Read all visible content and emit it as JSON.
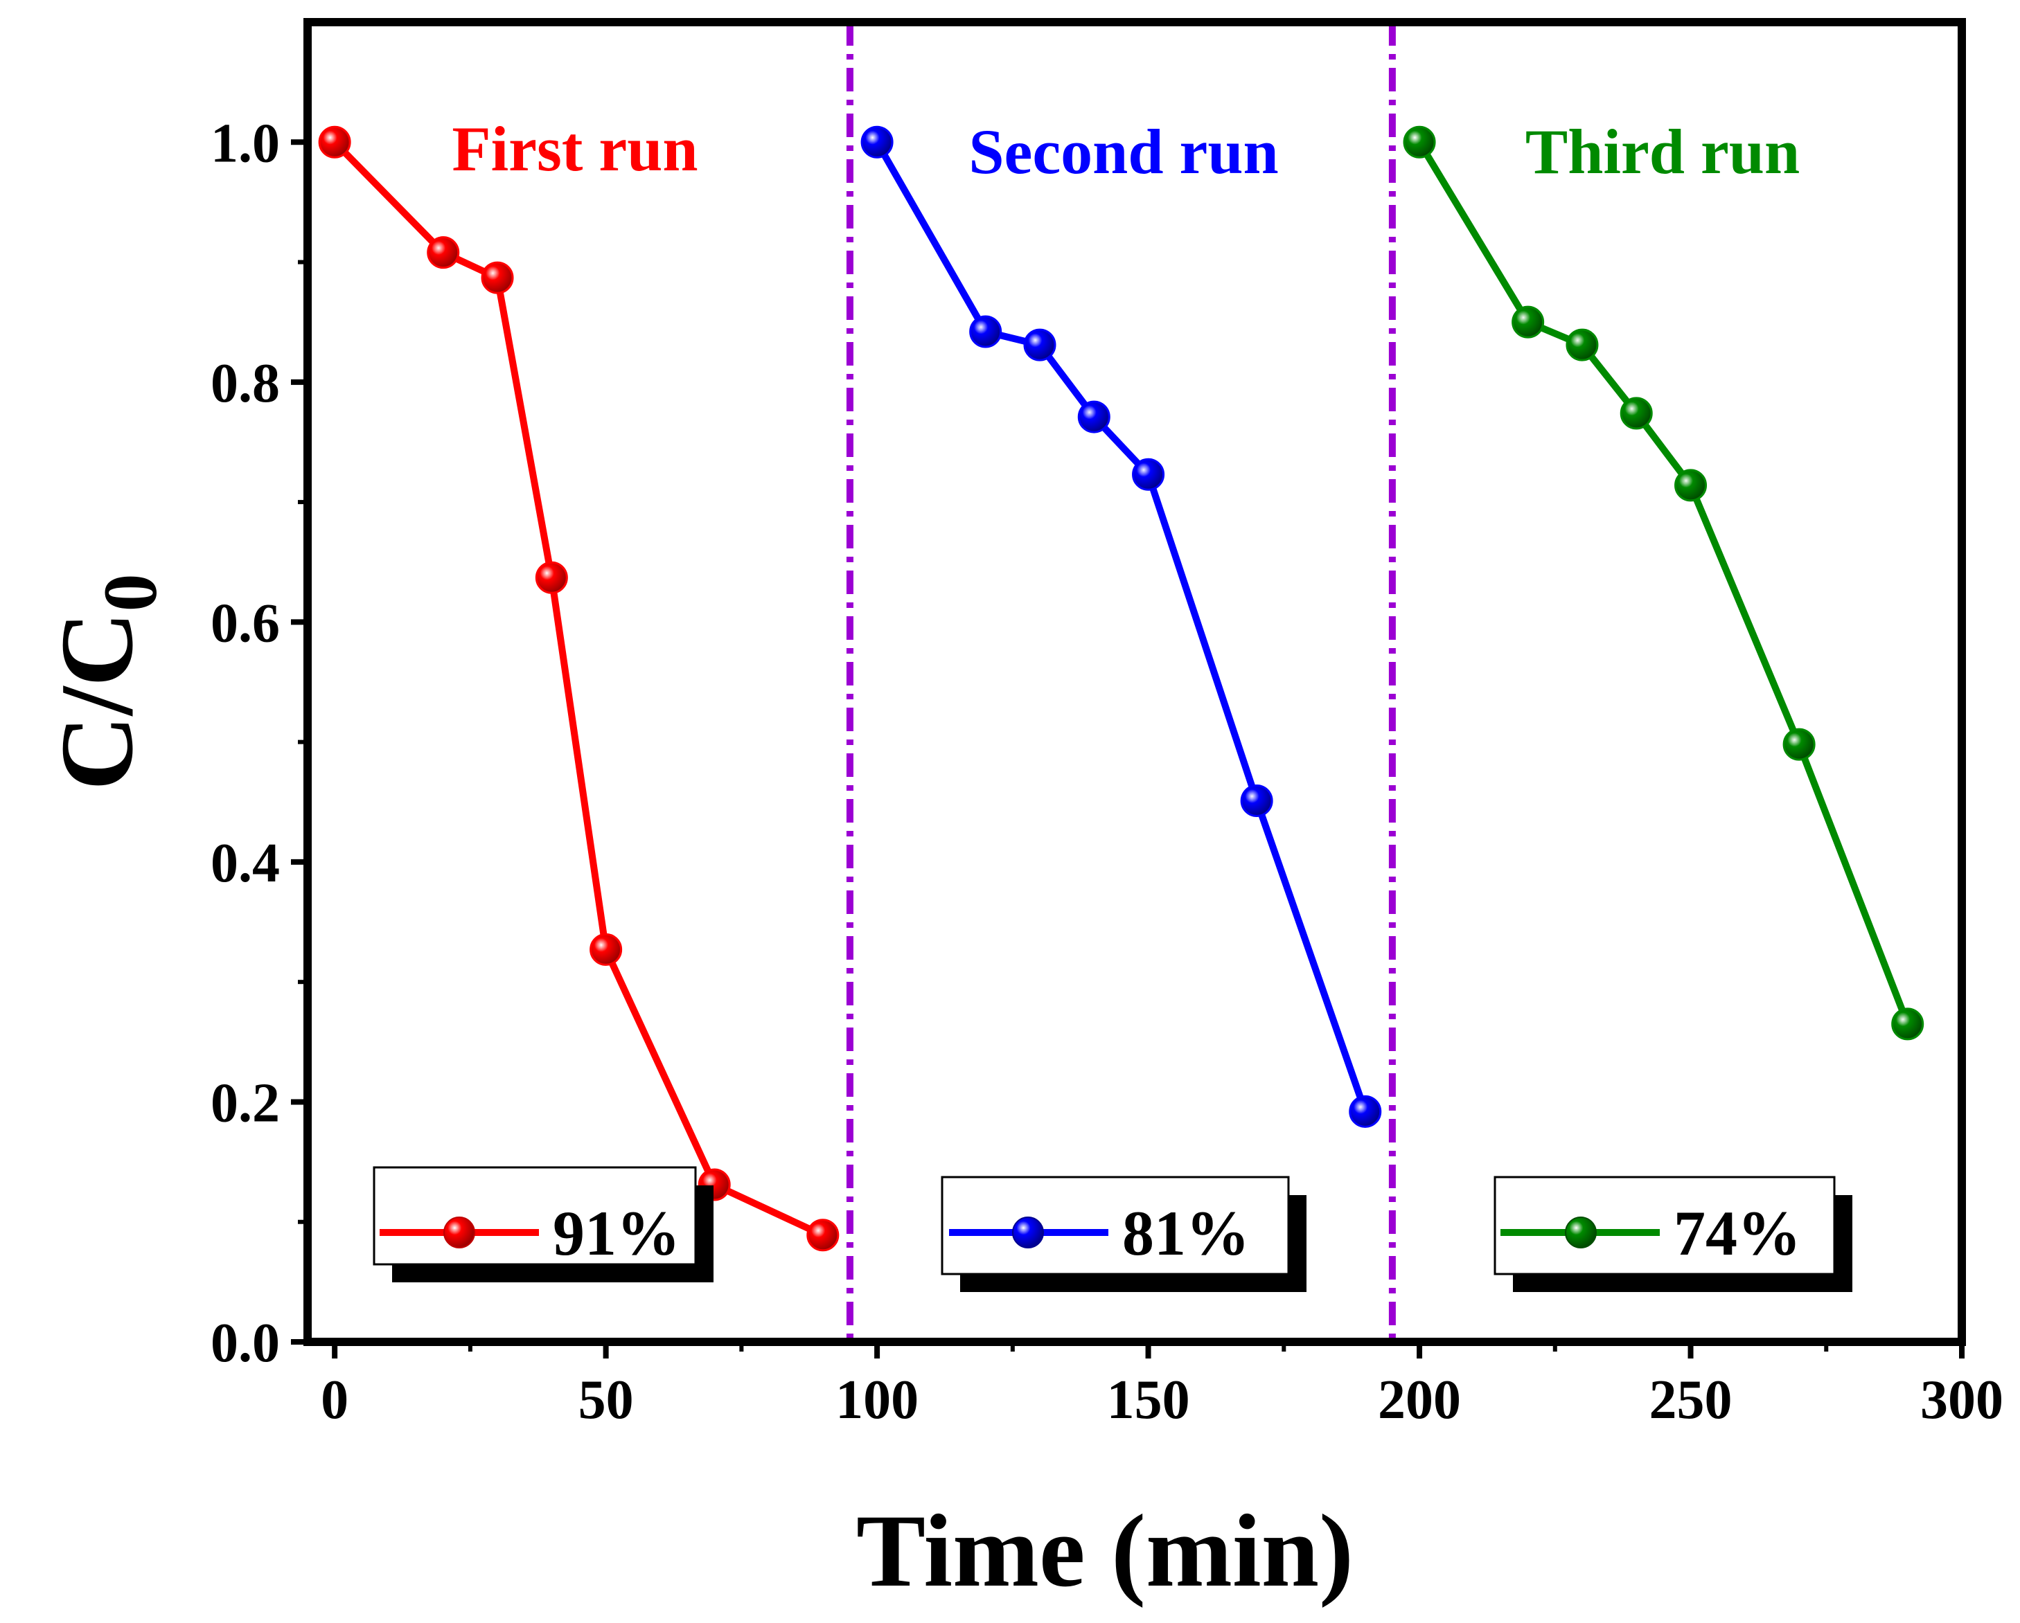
{
  "chart_data": {
    "type": "line",
    "xlabel": "Time (min)",
    "ylabel_main": "C/C",
    "ylabel_sub": "0",
    "xlim": [
      -5,
      300
    ],
    "ylim": [
      0,
      1.1
    ],
    "xticks": [
      0,
      50,
      100,
      150,
      200,
      250,
      300
    ],
    "yticks": [
      0.0,
      0.2,
      0.4,
      0.6,
      0.8,
      1.0
    ],
    "xtick_labels": [
      "0",
      "50",
      "100",
      "150",
      "200",
      "250",
      "300"
    ],
    "ytick_labels": [
      "0.0",
      "0.2",
      "0.4",
      "0.6",
      "0.8",
      "1.0"
    ],
    "dividers": [
      {
        "x": 95,
        "color": "#9b00d3"
      },
      {
        "x": 195,
        "color": "#9b00d3"
      }
    ],
    "series": [
      {
        "name": "First run",
        "legend": "91%",
        "color": "#ff0000",
        "x": [
          0,
          20,
          30,
          40,
          50,
          70,
          90
        ],
        "y": [
          1.0,
          0.908,
          0.887,
          0.637,
          0.327,
          0.131,
          0.089
        ]
      },
      {
        "name": "Second run",
        "legend": "81%",
        "color": "#0000ff",
        "x": [
          100,
          120,
          130,
          140,
          150,
          170,
          190
        ],
        "y": [
          1.0,
          0.842,
          0.831,
          0.771,
          0.723,
          0.451,
          0.192
        ]
      },
      {
        "name": "Third run",
        "legend": "74%",
        "color": "#008a00",
        "x": [
          200,
          220,
          230,
          240,
          250,
          270,
          290
        ],
        "y": [
          1.0,
          0.85,
          0.831,
          0.774,
          0.714,
          0.498,
          0.265
        ]
      }
    ]
  }
}
